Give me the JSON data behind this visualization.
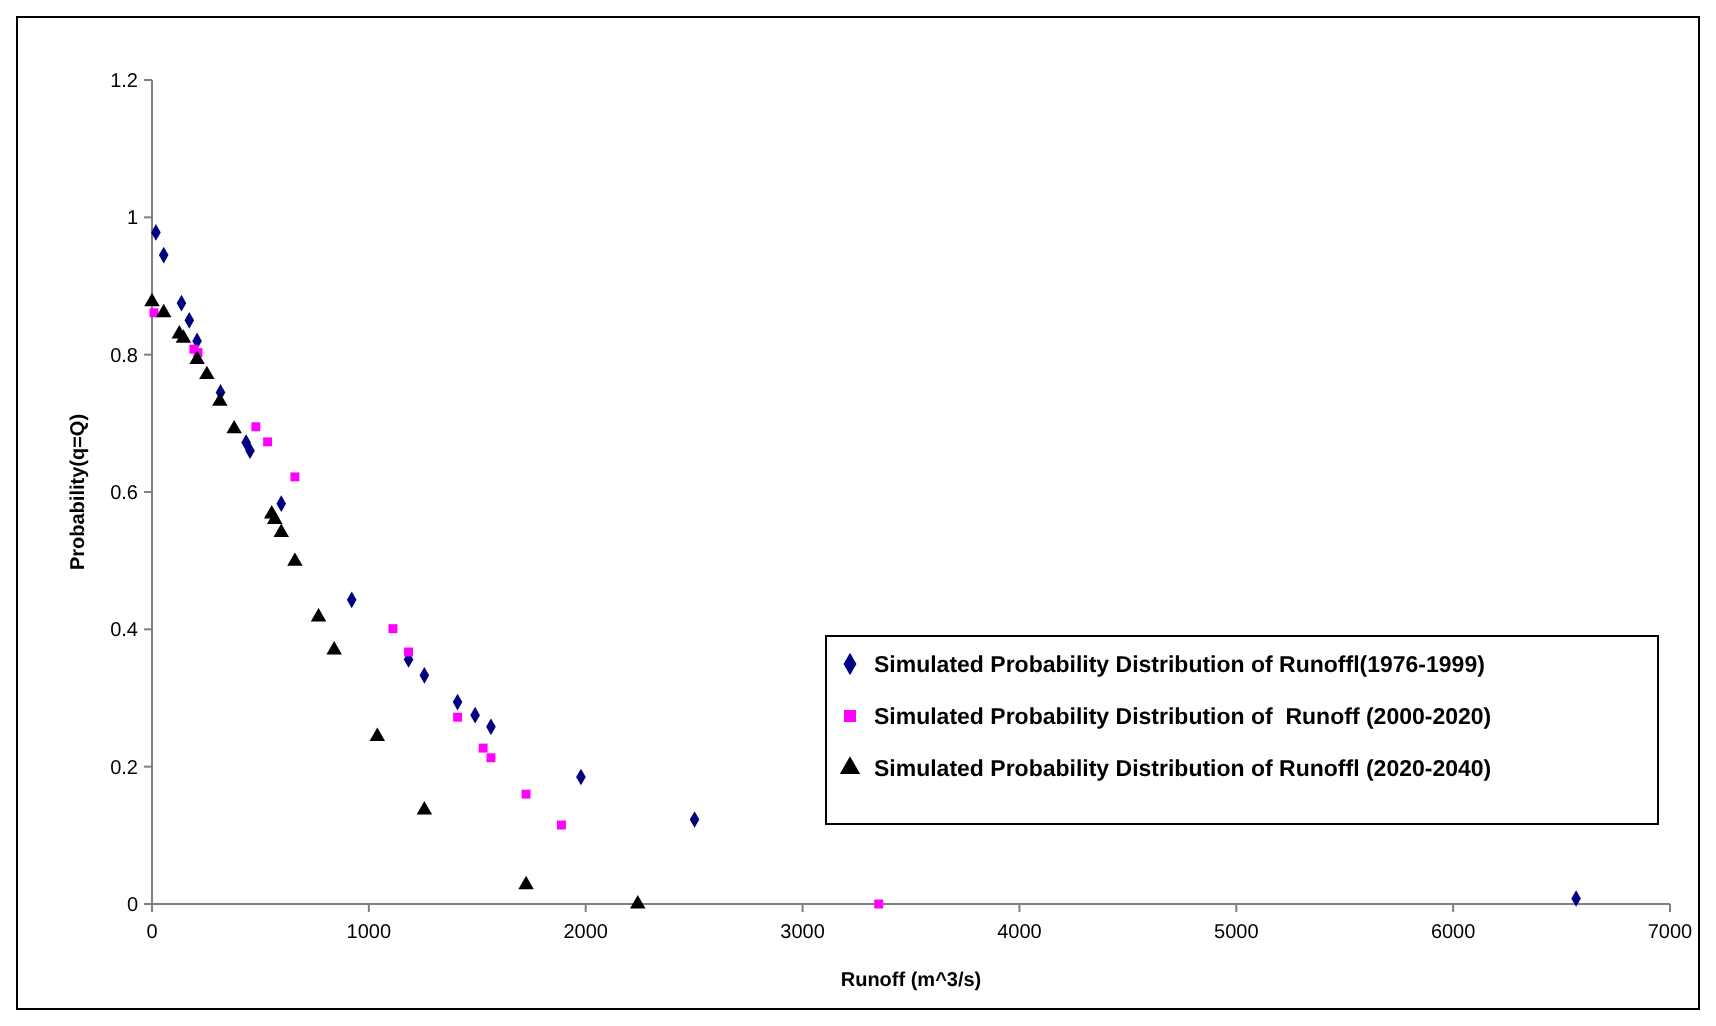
{
  "chart_data": {
    "type": "scatter",
    "xlabel": "Runoff (m^3/s)",
    "ylabel": "Probability(q=Q)",
    "xlim": [
      0,
      7000
    ],
    "xticks": [
      0,
      1000,
      2000,
      3000,
      4000,
      5000,
      6000,
      7000
    ],
    "ylim": [
      0,
      1.2
    ],
    "yticks": [
      0,
      0.2,
      0.4,
      0.6,
      0.8,
      1,
      1.2
    ],
    "grid": false,
    "legend": "bottom right",
    "series": [
      {
        "name": "Simulated Probability Distribution of Runoffl(1976-1999)",
        "color": "#000080",
        "marker": "diamond",
        "x": [
          18,
          54,
          136,
          172,
          208,
          316,
          434,
          452,
          596,
          921,
          1183,
          1256,
          1409,
          1490,
          1563,
          1978,
          2502,
          6567
        ],
        "values": [
          0.978,
          0.945,
          0.875,
          0.85,
          0.82,
          0.745,
          0.672,
          0.66,
          0.583,
          0.443,
          0.356,
          0.333,
          0.294,
          0.275,
          0.258,
          0.185,
          0.123,
          0.008
        ]
      },
      {
        "name": "Simulated Probability Distribution of  Runoff (2000-2020)",
        "color": "#ff00ff",
        "marker": "square",
        "x": [
          9,
          193,
          212,
          479,
          533,
          659,
          1111,
          1183,
          1409,
          1527,
          1563,
          1725,
          1888,
          3351
        ],
        "values": [
          0.861,
          0.808,
          0.803,
          0.695,
          0.673,
          0.622,
          0.401,
          0.367,
          0.272,
          0.227,
          0.213,
          0.16,
          0.115,
          0
        ]
      },
      {
        "name": "Simulated Probability Distribution of Runoffl (2020-2040)",
        "color": "#000000",
        "marker": "triangle",
        "x": [
          0,
          54,
          126,
          145,
          208,
          253,
          313,
          379,
          552,
          566,
          596,
          659,
          768,
          840,
          1039,
          1256,
          1725,
          2240
        ],
        "values": [
          0.877,
          0.861,
          0.83,
          0.824,
          0.793,
          0.771,
          0.732,
          0.692,
          0.568,
          0.56,
          0.541,
          0.499,
          0.418,
          0.37,
          0.244,
          0.137,
          0.028,
          0
        ]
      }
    ]
  }
}
